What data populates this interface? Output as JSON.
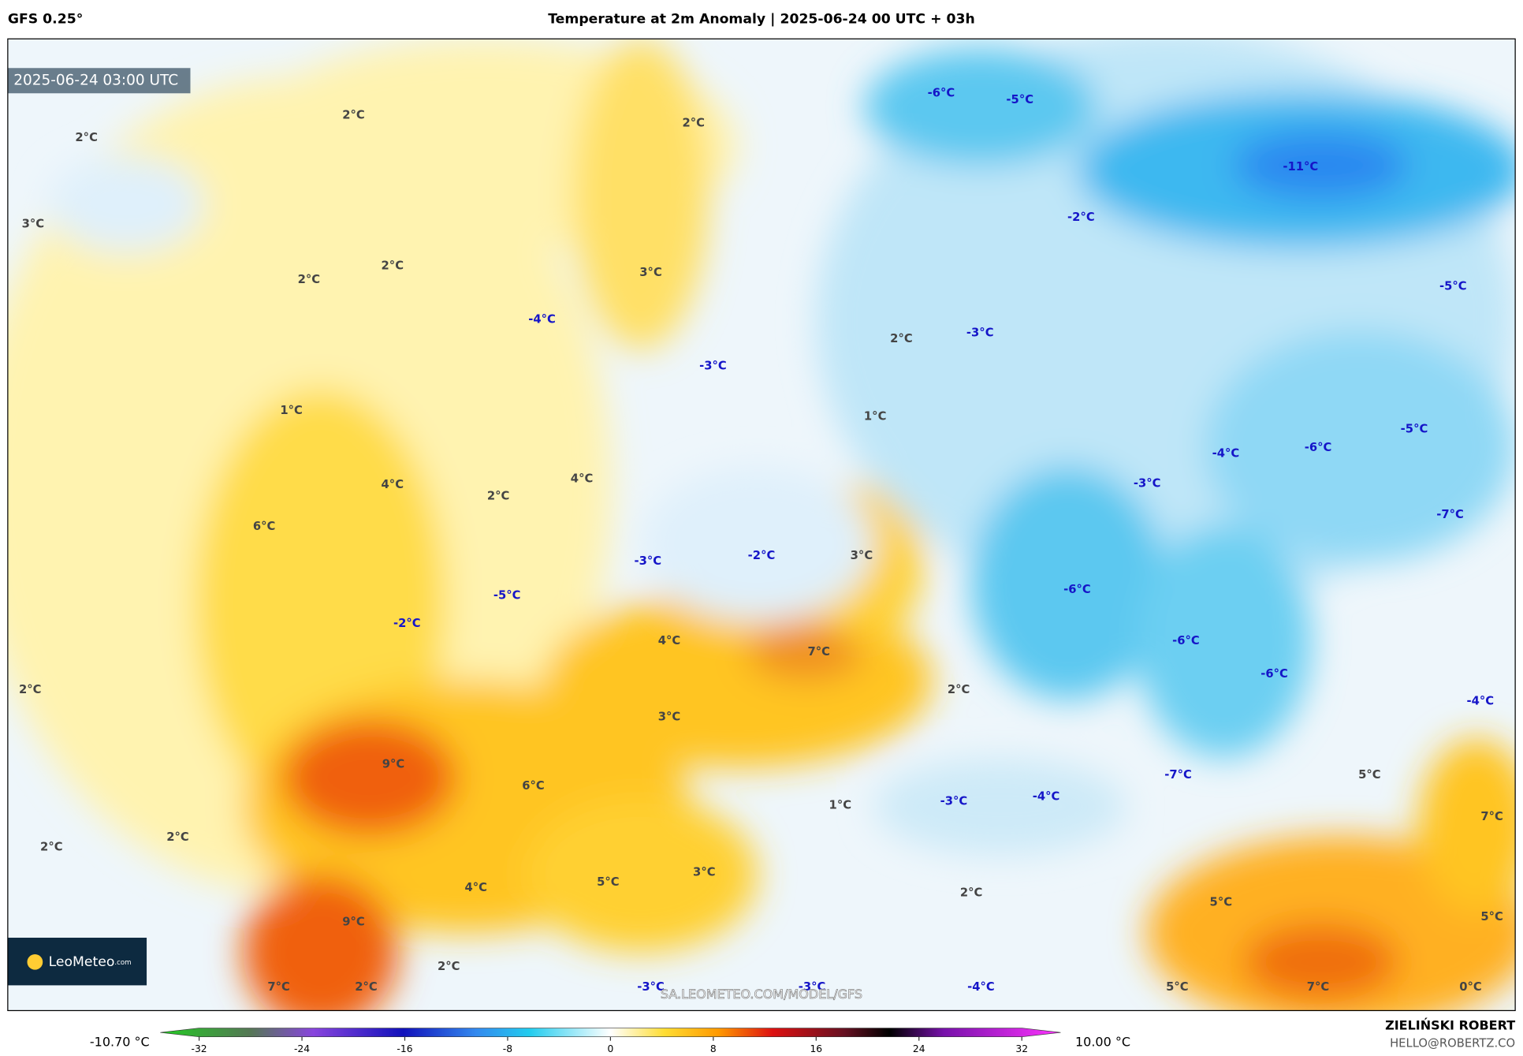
{
  "header": {
    "model": "GFS 0.25°",
    "title": "Temperature at 2m Anomaly | 2025-06-24 00 UTC + 03h",
    "valid_time": "2025-06-24 03:00 UTC"
  },
  "map": {
    "labels": [
      "2°C",
      "2°C",
      "3°C",
      "2°C",
      "2°C",
      "3°C",
      "2°C",
      "-6°C",
      "-5°C",
      "-11°C",
      "-2°C",
      "-5°C",
      "-4°C",
      "-3°C",
      "2°C",
      "-3°C",
      "1°C",
      "1°C",
      "4°C",
      "4°C",
      "2°C",
      "6°C",
      "-4°C",
      "-6°C",
      "-5°C",
      "-3°C",
      "-7°C",
      "-3°C",
      "-2°C",
      "3°C",
      "-5°C",
      "-2°C",
      "-6°C",
      "4°C",
      "7°C",
      "-6°C",
      "-6°C",
      "2°C",
      "2°C",
      "-4°C",
      "3°C",
      "9°C",
      "6°C",
      "-7°C",
      "5°C",
      "1°C",
      "-3°C",
      "-4°C",
      "7°C",
      "2°C",
      "2°C",
      "3°C",
      "5°C",
      "4°C",
      "2°C",
      "5°C",
      "9°C",
      "5°C",
      "2°C",
      "7°C",
      "2°C",
      "-3°C",
      "-3°C",
      "-4°C",
      "5°C",
      "7°C",
      "0°C"
    ],
    "watermark": "SA.LEOMETEO.COM/MODEL/GFS",
    "logo": "LeoMeteo",
    "logo_suffix": ".com"
  },
  "colorbar": {
    "min_label": "-10.70 °C",
    "max_label": "10.00 °C",
    "lim": [
      -32,
      32
    ],
    "ticks": [
      -32,
      -24,
      -16,
      -8,
      0,
      8,
      16,
      24,
      32
    ]
  },
  "credit": {
    "author": "ZIELIŃSKI ROBERT",
    "email": "HELLO@ROBERTZ.CO"
  }
}
